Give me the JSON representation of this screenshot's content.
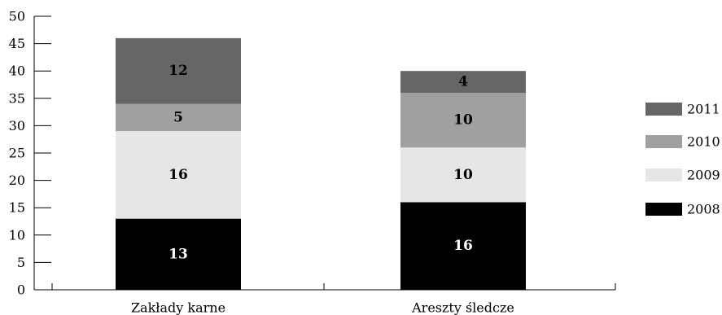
{
  "chart_data": {
    "type": "bar",
    "stacked": true,
    "categories": [
      "Zakłady karne",
      "Areszty śledcze"
    ],
    "series": [
      {
        "name": "2008",
        "values": [
          13,
          16
        ],
        "color": "#000000",
        "label_color": "#ffffff"
      },
      {
        "name": "2009",
        "values": [
          16,
          10
        ],
        "color": "#e6e6e6",
        "label_color": "#000000"
      },
      {
        "name": "2010",
        "values": [
          5,
          10
        ],
        "color": "#a0a0a0",
        "label_color": "#000000"
      },
      {
        "name": "2011",
        "values": [
          12,
          4
        ],
        "color": "#666666",
        "label_color": "#000000"
      }
    ],
    "yticks": [
      0,
      5,
      10,
      15,
      20,
      25,
      30,
      35,
      40,
      45,
      50
    ],
    "ylim": [
      0,
      50
    ],
    "title": "",
    "xlabel": "",
    "ylabel": "",
    "grid": false,
    "legend_position": "right",
    "legend_order": [
      "2011",
      "2010",
      "2009",
      "2008"
    ]
  }
}
